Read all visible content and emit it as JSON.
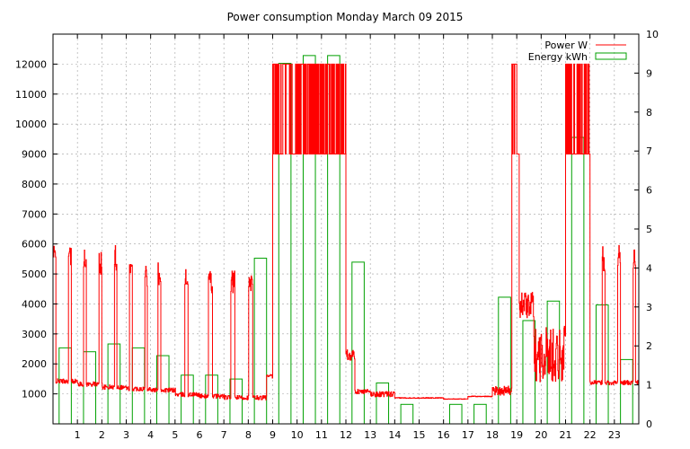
{
  "chart_data": {
    "type": "line",
    "title": "Power consumption Monday March 09 2015",
    "xlim": [
      0,
      24
    ],
    "ylim_left": [
      0,
      13000
    ],
    "ylim_right": [
      0,
      10
    ],
    "x_ticks": [
      "1",
      "2",
      "3",
      "4",
      "5",
      "6",
      "7",
      "8",
      "9",
      "10",
      "11",
      "12",
      "13",
      "14",
      "15",
      "16",
      "17",
      "18",
      "19",
      "20",
      "21",
      "22",
      "23"
    ],
    "y_ticks_left": [
      "1000",
      "2000",
      "3000",
      "4000",
      "5000",
      "6000",
      "7000",
      "8000",
      "9000",
      "10000",
      "11000",
      "12000"
    ],
    "y_ticks_right": [
      "0",
      "1",
      "2",
      "3",
      "4",
      "5",
      "6",
      "7",
      "8",
      "9",
      "10"
    ],
    "grid": true,
    "legend_position": "top-right",
    "series": [
      {
        "name": "Power W",
        "color": "#ff0000",
        "axis": "left",
        "profile": [
          [
            0.0,
            1350,
            6000,
            1.6
          ],
          [
            1.0,
            1250,
            5800,
            1.6
          ],
          [
            2.0,
            1150,
            6000,
            1.6
          ],
          [
            3.0,
            1100,
            5400,
            1.6
          ],
          [
            4.0,
            1050,
            5400,
            1.4
          ],
          [
            5.0,
            900,
            5200,
            1.3
          ],
          [
            6.0,
            850,
            5100,
            1.1
          ],
          [
            7.0,
            800,
            5100,
            1.1
          ],
          [
            8.0,
            800,
            5000,
            1.0
          ],
          [
            8.75,
            1500,
            6000,
            0.5
          ],
          [
            9.0,
            9000,
            12000,
            0.3
          ],
          [
            12.0,
            1000,
            2500,
            0.5
          ],
          [
            13.0,
            900,
            1200,
            0.1
          ],
          [
            14.0,
            850,
            900,
            0.1
          ],
          [
            16.0,
            820,
            850,
            0.1
          ],
          [
            17.0,
            900,
            950,
            0.1
          ],
          [
            18.0,
            950,
            1500,
            0.2
          ],
          [
            18.8,
            9000,
            12000,
            0.3
          ],
          [
            19.1,
            3500,
            5000,
            0.2
          ],
          [
            19.7,
            1400,
            4500,
            0.2
          ],
          [
            21.0,
            9000,
            12000,
            0.3
          ],
          [
            21.4,
            1800,
            9000,
            0.3
          ],
          [
            22.0,
            1300,
            6000,
            1.6
          ],
          [
            24.0,
            1300,
            6000,
            1.6
          ]
        ]
      },
      {
        "name": "Energy kWh",
        "color": "#00a000",
        "axis": "right",
        "bar_width_hours": 0.5,
        "x": [
          0,
          1,
          2,
          3,
          4,
          5,
          6,
          7,
          8,
          9,
          10,
          11,
          12,
          13,
          14,
          15,
          16,
          17,
          18,
          19,
          20,
          21,
          22,
          23
        ],
        "values": [
          1.95,
          1.85,
          2.05,
          1.95,
          1.75,
          1.25,
          1.25,
          1.15,
          4.25,
          9.25,
          9.45,
          9.45,
          4.15,
          1.05,
          0.5,
          0.0,
          0.5,
          0.5,
          3.25,
          2.65,
          3.15,
          7.35,
          3.05,
          1.65
        ]
      }
    ]
  }
}
